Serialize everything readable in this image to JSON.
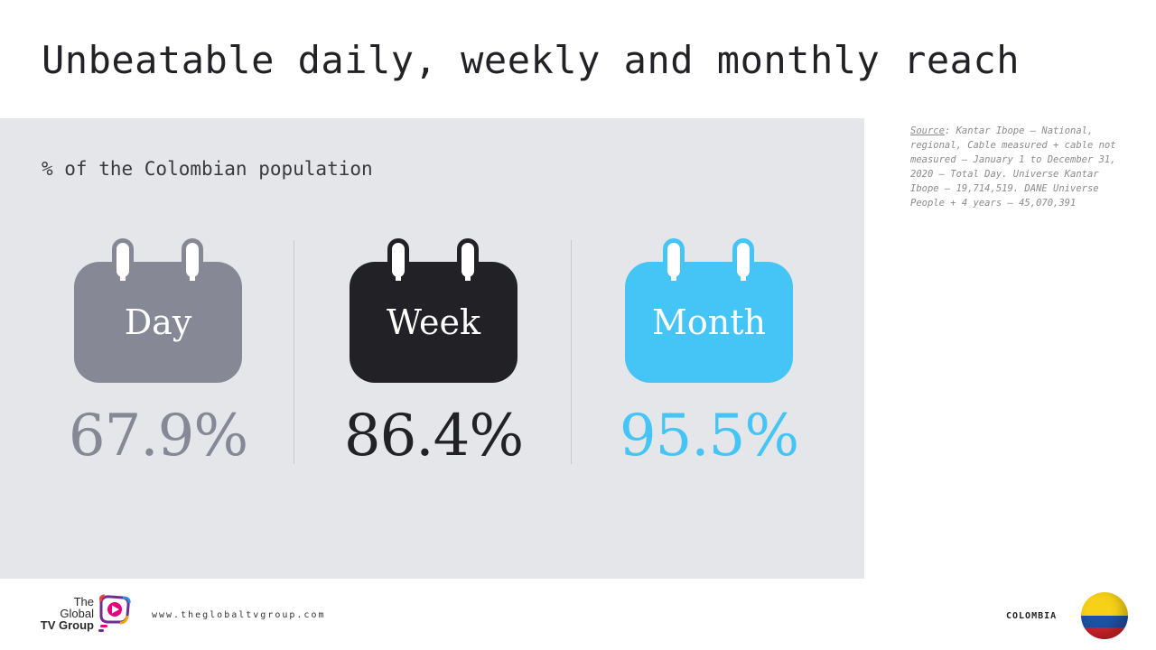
{
  "title": "Unbeatable daily, weekly and monthly reach",
  "subtitle": "% of the Colombian population",
  "metrics": [
    {
      "label": "Day",
      "value": "67.9%",
      "color": "#878895"
    },
    {
      "label": "Week",
      "value": "86.4%",
      "color": "#222226"
    },
    {
      "label": "Month",
      "value": "95.5%",
      "color": "#45c5f5"
    }
  ],
  "source": {
    "label": "Source",
    "text": ": Kantar Ibope – National, regional, Cable measured + cable not measured – January 1 to December 31, 2020 – Total Day. Universe Kantar Ibope – 19,714,519. DANE Universe People + 4 years – 45,070,391"
  },
  "footer": {
    "logo_lines": [
      "The",
      "Global",
      "TV Group"
    ],
    "url": "www.theglobaltvgroup.com",
    "country": "COLOMBIA"
  }
}
